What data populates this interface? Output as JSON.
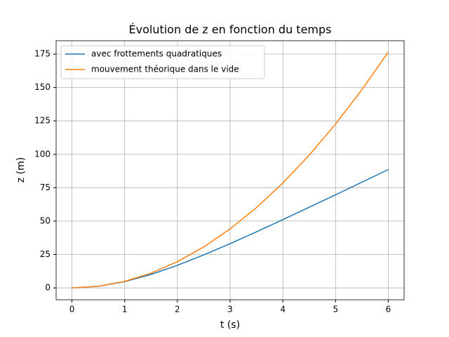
{
  "chart_data": {
    "type": "line",
    "title": "Évolution de z en fonction du temps",
    "x_label": "t (s)",
    "y_label": "z (m)",
    "x": [
      0,
      0.5,
      1,
      1.5,
      2,
      2.5,
      3,
      3.5,
      4,
      4.5,
      5,
      5.5,
      6
    ],
    "series": [
      {
        "name": "avec frottements quadratiques",
        "color": "#1f77b4",
        "values": [
          0,
          1.21,
          4.71,
          10.09,
          16.89,
          24.68,
          33.12,
          41.97,
          51.08,
          60.35,
          69.7,
          79.12,
          88.57
        ]
      },
      {
        "name": "mouvement théorique dans le vide",
        "color": "#ff7f0e",
        "values": [
          0,
          1.23,
          4.91,
          11.04,
          19.62,
          30.66,
          44.15,
          60.09,
          78.48,
          99.33,
          122.63,
          148.38,
          176.58
        ]
      }
    ],
    "xlim": [
      -0.3,
      6.3
    ],
    "xticks": [
      0,
      1,
      2,
      3,
      4,
      5,
      6
    ],
    "ylim": [
      -8.9,
      185
    ],
    "yticks": [
      0,
      25,
      50,
      75,
      100,
      125,
      150,
      175
    ],
    "grid": true,
    "legend": "upper left"
  }
}
